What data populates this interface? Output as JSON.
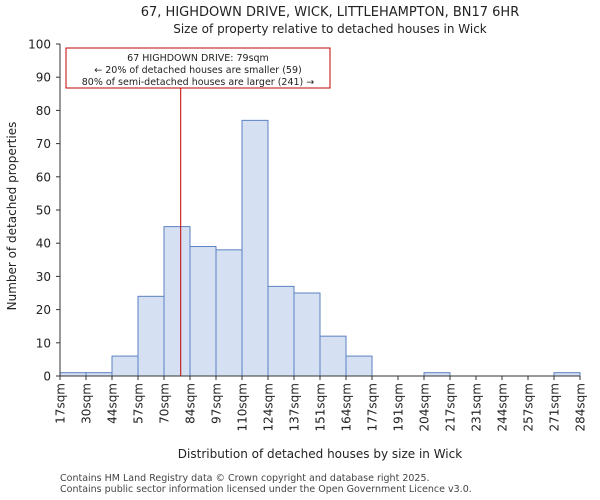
{
  "chart_data": {
    "type": "bar",
    "title": "67, HIGHDOWN DRIVE, WICK, LITTLEHAMPTON, BN17 6HR",
    "subtitle": "Size of property relative to detached houses in Wick",
    "xlabel": "Distribution of detached houses by size in Wick",
    "ylabel": "Number of detached properties",
    "ylim": [
      0,
      100
    ],
    "yticks": [
      0,
      10,
      20,
      30,
      40,
      50,
      60,
      70,
      80,
      90,
      100
    ],
    "bin_edges": [
      17,
      30,
      44,
      57,
      70,
      84,
      97,
      110,
      124,
      137,
      151,
      164,
      177,
      191,
      204,
      217,
      231,
      244,
      257,
      271,
      284
    ],
    "tick_labels": [
      "17sqm",
      "30sqm",
      "44sqm",
      "57sqm",
      "70sqm",
      "84sqm",
      "97sqm",
      "110sqm",
      "124sqm",
      "137sqm",
      "151sqm",
      "164sqm",
      "177sqm",
      "191sqm",
      "204sqm",
      "217sqm",
      "231sqm",
      "244sqm",
      "257sqm",
      "271sqm",
      "284sqm"
    ],
    "values": [
      1,
      1,
      6,
      24,
      45,
      39,
      38,
      77,
      27,
      25,
      12,
      6,
      0,
      0,
      1,
      0,
      0,
      0,
      0,
      1
    ],
    "bar_color": "#d6e0f3",
    "bar_edge_color": "#5b82c0",
    "marker": {
      "value": 79,
      "color": "#c00000",
      "annotation": [
        "67 HIGHDOWN DRIVE: 79sqm",
        "← 20% of detached houses are smaller (59)",
        "80% of semi-detached houses are larger (241) →"
      ]
    },
    "grid": false
  },
  "footer": {
    "line1": "Contains HM Land Registry data © Crown copyright and database right 2025.",
    "line2": "Contains public sector information licensed under the Open Government Licence v3.0."
  }
}
